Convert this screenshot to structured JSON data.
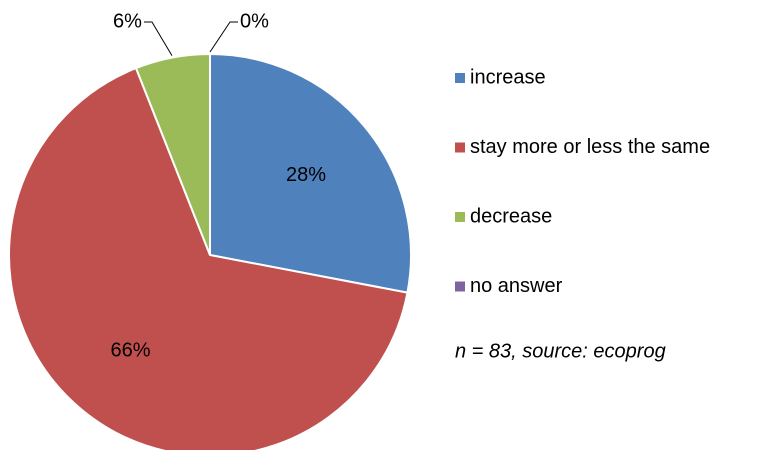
{
  "chart_data": {
    "type": "pie",
    "categories": [
      "increase",
      "stay more or less the same",
      "decrease",
      "no answer"
    ],
    "values": [
      28,
      66,
      6,
      0
    ],
    "value_labels": [
      "28%",
      "66%",
      "6%",
      "0%"
    ],
    "colors": [
      "#4f81bd",
      "#c0504d",
      "#9bbb59",
      "#8064a2"
    ],
    "annotation": "n = 83, source: ecoprog"
  }
}
